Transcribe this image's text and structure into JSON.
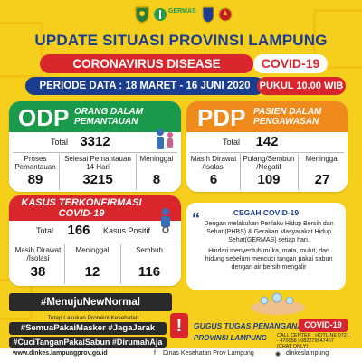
{
  "header": {
    "title": "UPDATE SITUASI PROVINSI LAMPUNG",
    "banner_left": "CORONAVIRUS DISEASE",
    "banner_right": "COVID-19",
    "periode": "PERIODE DATA : 18 MARET - 16 JUNI 2020",
    "pukul": "PUKUL 10.00 WIB",
    "germas": "GERMAS"
  },
  "odp": {
    "abbr": "ODP",
    "desc1": "ORANG DALAM",
    "desc2": "PEMANTAUAN",
    "total_label": "Total",
    "total": "3312",
    "c1_label": "Proses Pemantauan",
    "c1_value": "89",
    "c2_label": "Selesai Pemantauan 14 Hari",
    "c2_value": "3215",
    "c3_label": "Meninggal",
    "c3_value": "8"
  },
  "pdp": {
    "abbr": "PDP",
    "desc1": "PASIEN DALAM",
    "desc2": "PENGAWASAN",
    "total_label": "Total",
    "total": "142",
    "c1_label": "Masih Dirawat /Isolasi",
    "c1_value": "6",
    "c2_label": "Pulang/Sembuh /Negatif",
    "c2_value": "109",
    "c3_label": "Meninggal",
    "c3_value": "27"
  },
  "kasus": {
    "title1": "KASUS TERKONFIRMASI",
    "title2": "COVID-19",
    "total_label": "Total",
    "total": "166",
    "positif_label": "Kasus Positif",
    "c1_label": "Masih Dirawat /Isolasi",
    "c1_value": "38",
    "c2_label": "Meninggal",
    "c2_value": "12",
    "c3_label": "Sembuh",
    "c3_value": "116"
  },
  "cegah": {
    "title": "CEGAH COVID-19",
    "p1": "Dengan melakukan Perilaku Hidup Bersih dan Sehat (PHBS) & Gerakan Masyarakat Hidup Sehat(GERMAS) setiap hari.",
    "p2": "Hindari menyentuh muka, mata, mulut, dan hidung sebelum mencuci tangan pakai sabun dengan air bersih mengalir"
  },
  "hashtags": {
    "h1": "#MenujuNewNormal",
    "protokol": "Tetap Lakukan Protokol Kesehatan",
    "h2": "#SemuaPakaiMasker  #JagaJarak",
    "h3": "#CuciTanganPakaiSabun  #DirumahAja",
    "excl": "!"
  },
  "gugus": {
    "title": "GUGUS TUGAS PENANGANAN",
    "covid": "COVID-19",
    "prov": "PROVINSI LAMPUNG",
    "contact": "CALL CENTER : HOTLINE 0721 - 470058 | 082279547467 (CHAT ONLY)"
  },
  "footer": {
    "web": "www.dinkes.lampungprov.go.id",
    "fb": "Dinas Kesehatan Prov Lampung",
    "ig": "dinkeslampung"
  },
  "colors": {
    "bg": "#f6cf1c",
    "navy": "#1a3d8f",
    "red": "#d9262c",
    "green": "#1a9a4b",
    "orange": "#f08a1c"
  }
}
